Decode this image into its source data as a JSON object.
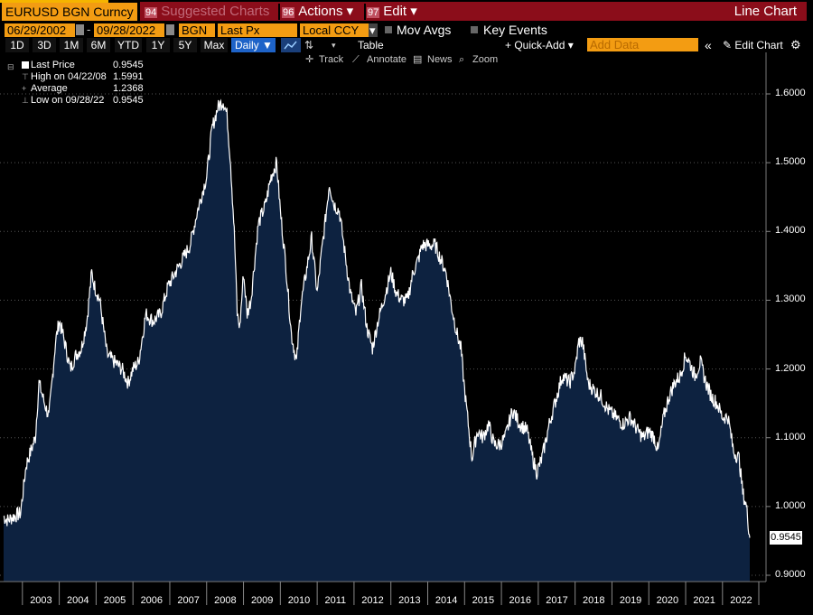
{
  "toolbar": {
    "ticker": "EURUSD BGN Curncy",
    "suggested_num": "94",
    "suggested_label": "Suggested Charts",
    "actions_num": "96",
    "actions_label": "Actions ▾",
    "edit_num": "97",
    "edit_label": "Edit ▾",
    "chart_type": "Line Chart"
  },
  "params": {
    "start_date": "06/29/2002",
    "end_date": "09/28/2022",
    "source": "BGN",
    "field": "Last Px",
    "currency": "Local CCY",
    "currency_arrow": "▾",
    "mov_avgs": "Mov Avgs",
    "key_events": "Key Events"
  },
  "periods": [
    "1D",
    "3D",
    "1M",
    "6M",
    "YTD",
    "1Y",
    "5Y",
    "Max"
  ],
  "frequency": "Daily ▼",
  "controls": {
    "table": "Table",
    "quick_add": "+ Quick-Add ▾",
    "add_data_placeholder": "Add Data",
    "collapse": "«",
    "edit_chart": "✎ Edit Chart",
    "settings": "⚙"
  },
  "tools": {
    "track": "Track",
    "annotate": "Annotate",
    "news": "News",
    "zoom": "Zoom"
  },
  "legend": {
    "last_label": "Last Price",
    "last_value": "0.9545",
    "high_label": "High on 04/22/08",
    "high_value": "1.5991",
    "avg_label": "Average",
    "avg_value": "1.2368",
    "low_label": "Low on 09/28/22",
    "low_value": "0.9545"
  },
  "colors": {
    "area": "#0d2240",
    "line": "#ffffff",
    "accent_orange": "#f39c12",
    "header_red": "#8b0d1a"
  },
  "chart_data": {
    "type": "area",
    "title": "EURUSD BGN Curncy",
    "series_name": "Last Price",
    "ylim": [
      0.9,
      1.65
    ],
    "yticks": [
      "1.6000",
      "1.5000",
      "1.4000",
      "1.3000",
      "1.2000",
      "1.1000",
      "1.0000",
      "0.9000"
    ],
    "ytick_values": [
      1.6,
      1.5,
      1.4,
      1.3,
      1.2,
      1.1,
      1.0,
      0.9
    ],
    "xlim": [
      2002.49,
      2022.74
    ],
    "years": [
      "2003",
      "2004",
      "2005",
      "2006",
      "2007",
      "2008",
      "2009",
      "2010",
      "2011",
      "2012",
      "2013",
      "2014",
      "2015",
      "2016",
      "2017",
      "2018",
      "2019",
      "2020",
      "2021",
      "2022"
    ],
    "last_value_label": "0.9545",
    "x": [
      2002.49,
      2002.6,
      2002.75,
      2002.95,
      2003.1,
      2003.35,
      2003.45,
      2003.6,
      2003.72,
      2003.9,
      2004.0,
      2004.1,
      2004.3,
      2004.45,
      2004.6,
      2004.75,
      2004.88,
      2004.96,
      2005.1,
      2005.3,
      2005.5,
      2005.7,
      2005.87,
      2006.0,
      2006.15,
      2006.35,
      2006.55,
      2006.75,
      2006.95,
      2007.15,
      2007.35,
      2007.55,
      2007.75,
      2007.9,
      2008.0,
      2008.15,
      2008.3,
      2008.45,
      2008.55,
      2008.65,
      2008.75,
      2008.83,
      2008.9,
      2009.0,
      2009.1,
      2009.2,
      2009.4,
      2009.6,
      2009.75,
      2009.9,
      2010.0,
      2010.15,
      2010.3,
      2010.44,
      2010.55,
      2010.7,
      2010.85,
      2011.0,
      2011.1,
      2011.25,
      2011.33,
      2011.45,
      2011.6,
      2011.75,
      2011.9,
      2012.05,
      2012.2,
      2012.35,
      2012.5,
      2012.65,
      2012.8,
      2013.0,
      2013.15,
      2013.3,
      2013.45,
      2013.6,
      2013.75,
      2013.85,
      2014.0,
      2014.2,
      2014.35,
      2014.5,
      2014.65,
      2014.8,
      2014.9,
      2015.0,
      2015.1,
      2015.2,
      2015.35,
      2015.5,
      2015.65,
      2015.8,
      2015.95,
      2016.1,
      2016.3,
      2016.5,
      2016.7,
      2016.85,
      2016.96,
      2017.1,
      2017.3,
      2017.5,
      2017.65,
      2017.85,
      2018.0,
      2018.1,
      2018.2,
      2018.35,
      2018.5,
      2018.7,
      2018.9,
      2019.1,
      2019.3,
      2019.5,
      2019.7,
      2019.85,
      2020.0,
      2020.15,
      2020.25,
      2020.4,
      2020.55,
      2020.7,
      2020.85,
      2021.0,
      2021.1,
      2021.25,
      2021.4,
      2021.55,
      2021.7,
      2021.85,
      2022.0,
      2022.15,
      2022.3,
      2022.45,
      2022.55,
      2022.65,
      2022.74
    ],
    "y": [
      0.985,
      0.98,
      0.985,
      0.99,
      1.06,
      1.1,
      1.18,
      1.15,
      1.13,
      1.24,
      1.27,
      1.25,
      1.2,
      1.22,
      1.23,
      1.27,
      1.34,
      1.32,
      1.3,
      1.22,
      1.21,
      1.2,
      1.18,
      1.2,
      1.21,
      1.28,
      1.27,
      1.28,
      1.32,
      1.34,
      1.36,
      1.38,
      1.43,
      1.46,
      1.48,
      1.55,
      1.58,
      1.59,
      1.57,
      1.5,
      1.4,
      1.28,
      1.26,
      1.34,
      1.28,
      1.3,
      1.41,
      1.44,
      1.48,
      1.5,
      1.43,
      1.35,
      1.25,
      1.21,
      1.29,
      1.34,
      1.39,
      1.31,
      1.36,
      1.43,
      1.47,
      1.44,
      1.43,
      1.37,
      1.31,
      1.28,
      1.32,
      1.26,
      1.23,
      1.27,
      1.3,
      1.34,
      1.31,
      1.3,
      1.3,
      1.34,
      1.36,
      1.38,
      1.38,
      1.38,
      1.36,
      1.34,
      1.29,
      1.25,
      1.23,
      1.17,
      1.12,
      1.07,
      1.11,
      1.1,
      1.12,
      1.09,
      1.09,
      1.1,
      1.14,
      1.12,
      1.11,
      1.07,
      1.05,
      1.07,
      1.12,
      1.16,
      1.19,
      1.18,
      1.2,
      1.24,
      1.24,
      1.18,
      1.17,
      1.16,
      1.14,
      1.13,
      1.12,
      1.13,
      1.11,
      1.1,
      1.11,
      1.1,
      1.08,
      1.13,
      1.16,
      1.18,
      1.19,
      1.22,
      1.21,
      1.19,
      1.21,
      1.18,
      1.16,
      1.15,
      1.13,
      1.13,
      1.08,
      1.07,
      1.02,
      1.0,
      0.9545
    ]
  }
}
